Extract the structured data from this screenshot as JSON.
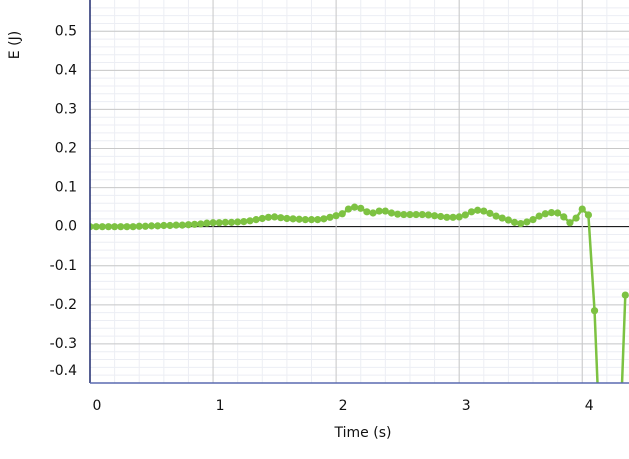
{
  "chart_data": {
    "type": "line",
    "xlabel": "Time (s)",
    "ylabel": "E (J)",
    "x": [
      0.0,
      0.05,
      0.1,
      0.15,
      0.2,
      0.25,
      0.3,
      0.35,
      0.4,
      0.45,
      0.5,
      0.55,
      0.6,
      0.65,
      0.7,
      0.75,
      0.8,
      0.85,
      0.9,
      0.95,
      1.0,
      1.05,
      1.1,
      1.15,
      1.2,
      1.25,
      1.3,
      1.35,
      1.4,
      1.45,
      1.5,
      1.55,
      1.6,
      1.65,
      1.7,
      1.75,
      1.8,
      1.85,
      1.9,
      1.95,
      2.0,
      2.05,
      2.1,
      2.15,
      2.2,
      2.25,
      2.3,
      2.35,
      2.4,
      2.45,
      2.5,
      2.55,
      2.6,
      2.65,
      2.7,
      2.75,
      2.8,
      2.85,
      2.9,
      2.95,
      3.0,
      3.05,
      3.1,
      3.15,
      3.2,
      3.25,
      3.3,
      3.35,
      3.4,
      3.45,
      3.5,
      3.55,
      3.6,
      3.65,
      3.7,
      3.75,
      3.8,
      3.85,
      3.9,
      3.95,
      4.0,
      4.05,
      4.1,
      4.15,
      4.3,
      4.35
    ],
    "series": [
      {
        "name": "E",
        "color": "#7dc242",
        "values": [
          0,
          0,
          0,
          0,
          0,
          0,
          0,
          0,
          0.001,
          0.001,
          0.002,
          0.002,
          0.003,
          0.003,
          0.004,
          0.004,
          0.005,
          0.006,
          0.007,
          0.009,
          0.01,
          0.01,
          0.011,
          0.011,
          0.012,
          0.013,
          0.015,
          0.018,
          0.021,
          0.024,
          0.025,
          0.023,
          0.021,
          0.02,
          0.019,
          0.018,
          0.018,
          0.018,
          0.02,
          0.024,
          0.028,
          0.033,
          0.045,
          0.05,
          0.047,
          0.038,
          0.035,
          0.04,
          0.04,
          0.035,
          0.032,
          0.031,
          0.031,
          0.031,
          0.031,
          0.03,
          0.028,
          0.026,
          0.024,
          0.024,
          0.025,
          0.03,
          0.038,
          0.042,
          0.04,
          0.034,
          0.027,
          0.022,
          0.017,
          0.011,
          0.008,
          0.012,
          0.018,
          0.027,
          0.033,
          0.036,
          0.035,
          0.025,
          0.01,
          0.022,
          0.045,
          0.03,
          -0.215,
          -0.6,
          -0.6,
          -0.175
        ]
      }
    ],
    "xlim": [
      0,
      4.38
    ],
    "xticks": [
      0,
      1,
      2,
      3,
      4
    ],
    "ylim": [
      -0.4,
      0.58
    ],
    "yticks": [
      0.5,
      0.4,
      0.3,
      0.2,
      0.1,
      {
        "value": 0,
        "label": "0.0"
      },
      -0.1,
      -0.2,
      -0.3,
      -0.4
    ],
    "grid": true
  }
}
